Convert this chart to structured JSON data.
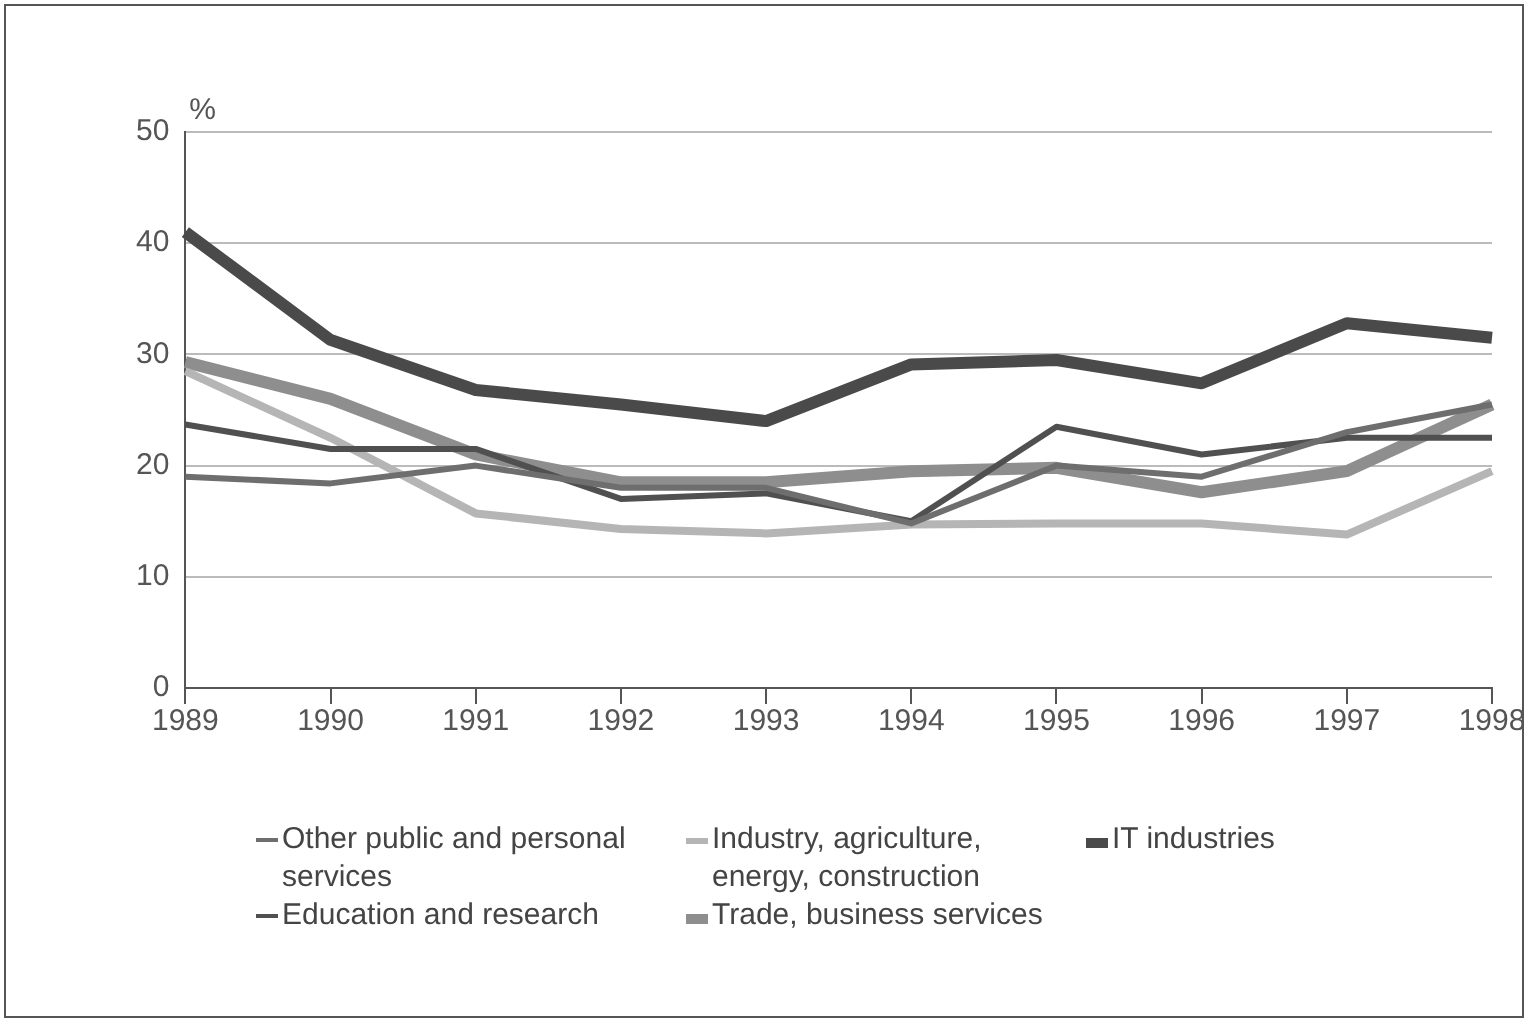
{
  "chart_data": {
    "type": "line",
    "ylabel": "%",
    "categories": [
      "1989",
      "1990",
      "1991",
      "1992",
      "1993",
      "1994",
      "1995",
      "1996",
      "1997",
      "1998"
    ],
    "ylim": [
      0,
      50
    ],
    "yticks": [
      0,
      10,
      20,
      30,
      40,
      50
    ],
    "grid": "y",
    "legend": "bottom",
    "line_style": "solid",
    "marker": "none",
    "series": [
      {
        "name": "Other public and personal services",
        "color": "#6e6e6e",
        "values": [
          19,
          18.4,
          20,
          18,
          18,
          14.8,
          20,
          19,
          23,
          25.5
        ]
      },
      {
        "name": "Education and research",
        "color": "#505050",
        "values": [
          23.7,
          21.5,
          21.5,
          17,
          17.5,
          15,
          23.5,
          21,
          22.5,
          22.5
        ]
      },
      {
        "name": "Industry, agriculture, energy, construction",
        "color": "#b5b5b5",
        "values": [
          28.5,
          22.5,
          15.7,
          14.3,
          13.9,
          14.7,
          14.8,
          14.8,
          13.8,
          19.5
        ]
      },
      {
        "name": "Trade, business services",
        "color": "#8e8e8e",
        "values": [
          29.3,
          26,
          21,
          18.5,
          18.5,
          19.5,
          19.8,
          17.6,
          19.5,
          25.5
        ]
      },
      {
        "name": "IT industries",
        "color": "#4a4a4a",
        "values": [
          41,
          31.3,
          26.8,
          25.5,
          24,
          29.1,
          29.5,
          27.4,
          32.8,
          31.5
        ]
      }
    ]
  }
}
